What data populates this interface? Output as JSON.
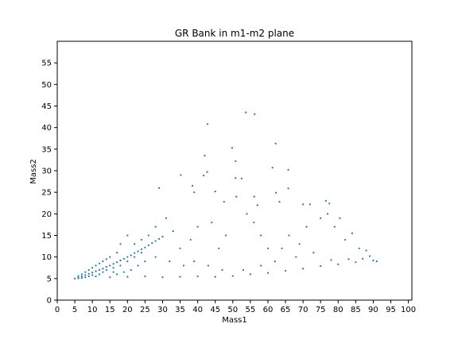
{
  "chart_data": {
    "type": "scatter",
    "title": "GR Bank in m1-m2 plane",
    "xlabel": "Mass1",
    "ylabel": "Mass2",
    "xlim": [
      0,
      101
    ],
    "ylim": [
      0,
      60
    ],
    "xticks": [
      0,
      5,
      10,
      15,
      20,
      25,
      30,
      35,
      40,
      45,
      50,
      55,
      60,
      65,
      70,
      75,
      80,
      85,
      90,
      95,
      100
    ],
    "yticks": [
      0,
      5,
      10,
      15,
      20,
      25,
      30,
      35,
      40,
      45,
      50,
      55
    ],
    "marker_color": "#1f77b4",
    "grid": false,
    "points": [
      [
        5,
        5
      ],
      [
        6,
        5.2
      ],
      [
        7,
        5.5
      ],
      [
        8,
        5.8
      ],
      [
        9,
        6.1
      ],
      [
        10,
        6.4
      ],
      [
        11,
        6.7
      ],
      [
        12,
        7.0
      ],
      [
        13,
        7.3
      ],
      [
        14,
        7.7
      ],
      [
        15,
        8.0
      ],
      [
        16,
        8.4
      ],
      [
        17,
        8.8
      ],
      [
        18,
        9.2
      ],
      [
        19,
        9.6
      ],
      [
        20,
        10.0
      ],
      [
        21,
        10.4
      ],
      [
        22,
        10.9
      ],
      [
        23,
        11.3
      ],
      [
        24,
        11.8
      ],
      [
        25,
        12.2
      ],
      [
        26,
        12.7
      ],
      [
        27,
        13.2
      ],
      [
        28,
        13.7
      ],
      [
        29,
        14.2
      ],
      [
        30,
        14.7
      ],
      [
        42.8,
        40.8
      ],
      [
        53.7,
        43.5
      ],
      [
        56.2,
        43.1
      ],
      [
        42,
        33.5
      ],
      [
        49.8,
        35.3
      ],
      [
        50.8,
        32.2
      ],
      [
        62.2,
        36.3
      ],
      [
        65.8,
        30.2
      ],
      [
        61.3,
        30.7
      ],
      [
        41.7,
        28.9
      ],
      [
        42.7,
        29.7
      ],
      [
        35.2,
        29.0
      ],
      [
        50.8,
        28.3
      ],
      [
        52.5,
        28.2
      ],
      [
        29,
        26.0
      ],
      [
        38.5,
        26.5
      ],
      [
        39,
        25.0
      ],
      [
        45,
        25.2
      ],
      [
        47.5,
        22.8
      ],
      [
        51,
        24.0
      ],
      [
        56.1,
        24.0
      ],
      [
        62.3,
        24.9
      ],
      [
        65.8,
        25.9
      ],
      [
        63.3,
        22.8
      ],
      [
        70,
        22.2
      ],
      [
        72,
        22.2
      ],
      [
        76.5,
        23.0
      ],
      [
        77.5,
        22.4
      ],
      [
        80.5,
        19.0
      ],
      [
        84,
        15.5
      ],
      [
        88,
        11.5
      ],
      [
        91,
        9.0
      ],
      [
        56,
        18
      ],
      [
        58,
        15
      ],
      [
        60,
        12
      ],
      [
        54,
        20
      ],
      [
        57,
        22
      ],
      [
        48,
        15
      ],
      [
        44,
        18
      ],
      [
        46,
        12
      ],
      [
        40,
        17
      ],
      [
        38,
        14
      ],
      [
        35,
        12
      ],
      [
        33,
        16
      ],
      [
        31,
        19
      ],
      [
        28,
        17
      ],
      [
        26,
        15
      ],
      [
        24,
        14
      ],
      [
        22,
        13
      ],
      [
        20,
        15
      ],
      [
        18,
        13
      ],
      [
        17,
        11
      ],
      [
        15,
        10
      ],
      [
        14,
        9.5
      ],
      [
        13,
        9
      ],
      [
        12,
        8.5
      ],
      [
        11,
        8
      ],
      [
        10,
        7.5
      ],
      [
        9,
        7
      ],
      [
        8,
        6.5
      ],
      [
        7,
        6
      ],
      [
        6,
        5.6
      ],
      [
        15,
        5.3
      ],
      [
        20,
        5.4
      ],
      [
        25,
        5.5
      ],
      [
        30,
        5.3
      ],
      [
        35,
        5.4
      ],
      [
        40,
        5.5
      ],
      [
        45,
        5.4
      ],
      [
        50,
        5.6
      ],
      [
        55,
        6.0
      ],
      [
        60,
        6.3
      ],
      [
        65,
        6.8
      ],
      [
        70,
        7.3
      ],
      [
        75,
        7.9
      ],
      [
        80,
        8.3
      ],
      [
        85,
        8.8
      ],
      [
        90,
        9.2
      ],
      [
        89,
        10.2
      ],
      [
        87,
        9.6
      ],
      [
        83,
        9.5
      ],
      [
        78,
        9.3
      ],
      [
        73,
        11
      ],
      [
        69,
        13
      ],
      [
        66,
        15
      ],
      [
        64,
        12
      ],
      [
        71,
        17
      ],
      [
        75,
        19
      ],
      [
        77,
        20
      ],
      [
        79,
        17
      ],
      [
        82,
        14
      ],
      [
        86,
        12
      ],
      [
        68,
        10
      ],
      [
        62,
        9
      ],
      [
        58,
        8
      ],
      [
        53,
        7
      ],
      [
        47,
        7
      ],
      [
        43,
        8
      ],
      [
        39,
        9
      ],
      [
        36,
        8
      ],
      [
        32,
        9
      ],
      [
        28,
        10
      ],
      [
        25,
        9
      ],
      [
        23,
        8
      ],
      [
        21,
        7
      ],
      [
        19,
        6.5
      ],
      [
        17,
        6
      ],
      [
        16,
        6.5
      ],
      [
        18,
        8
      ],
      [
        20,
        9
      ],
      [
        22,
        10
      ],
      [
        24,
        11
      ],
      [
        12,
        6
      ],
      [
        13,
        6.5
      ],
      [
        14,
        7
      ],
      [
        16,
        7.5
      ],
      [
        11,
        5.5
      ],
      [
        10,
        5.8
      ],
      [
        9,
        5.5
      ],
      [
        8,
        5.3
      ],
      [
        7,
        5.1
      ],
      [
        6,
        5.05
      ]
    ]
  }
}
